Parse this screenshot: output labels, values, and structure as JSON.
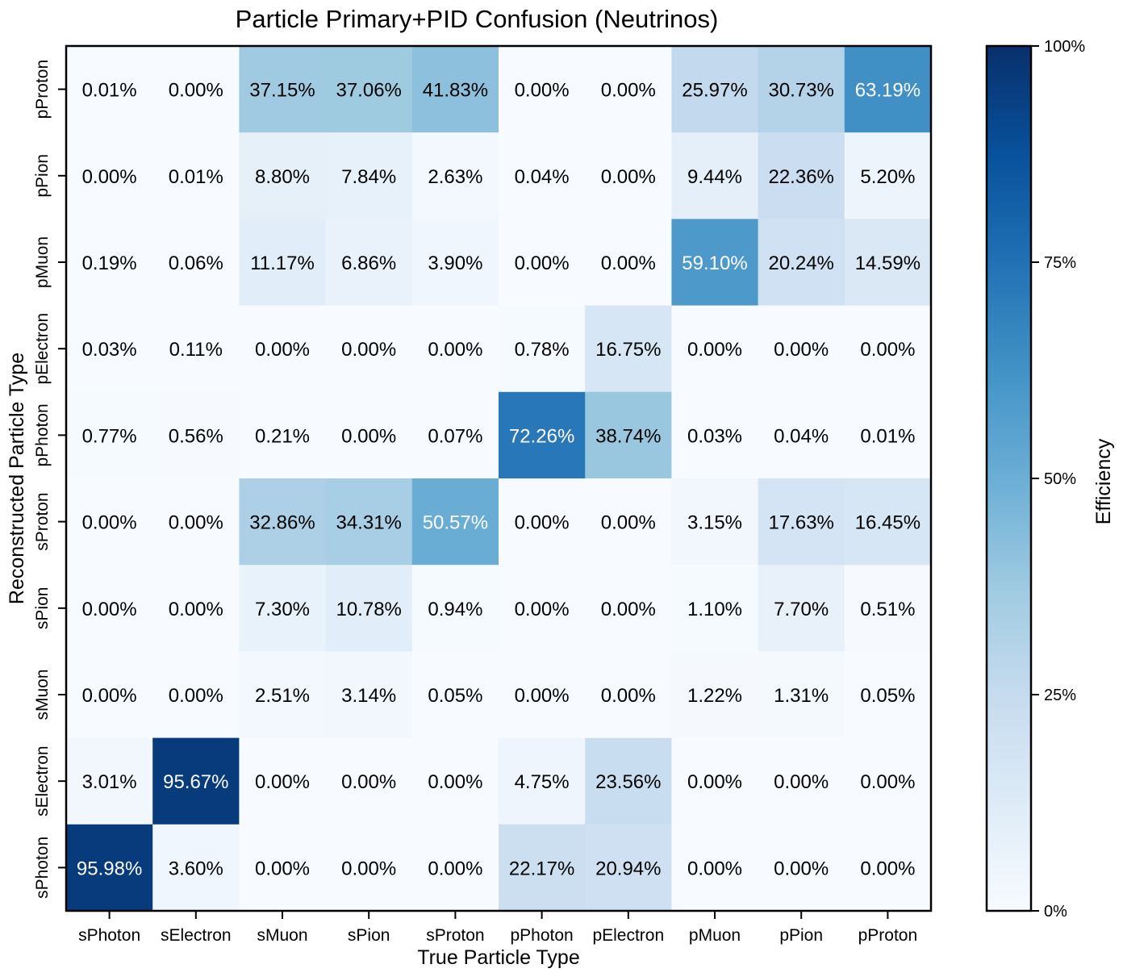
{
  "chart_data": {
    "type": "heatmap",
    "title": "Particle Primary+PID Confusion (Neutrinos)",
    "xlabel": "True Particle Type",
    "ylabel": "Reconstructed Particle Type",
    "x_categories": [
      "sPhoton",
      "sElectron",
      "sMuon",
      "sPion",
      "sProton",
      "pPhoton",
      "pElectron",
      "pMuon",
      "pPion",
      "pProton"
    ],
    "y_categories": [
      "pProton",
      "pPion",
      "pMuon",
      "pElectron",
      "pPhoton",
      "sProton",
      "sPion",
      "sMuon",
      "sElectron",
      "sPhoton"
    ],
    "values": [
      [
        0.01,
        0.0,
        37.15,
        37.06,
        41.83,
        0.0,
        0.0,
        25.97,
        30.73,
        63.19
      ],
      [
        0.0,
        0.01,
        8.8,
        7.84,
        2.63,
        0.04,
        0.0,
        9.44,
        22.36,
        5.2
      ],
      [
        0.19,
        0.06,
        11.17,
        6.86,
        3.9,
        0.0,
        0.0,
        59.1,
        20.24,
        14.59
      ],
      [
        0.03,
        0.11,
        0.0,
        0.0,
        0.0,
        0.78,
        16.75,
        0.0,
        0.0,
        0.0
      ],
      [
        0.77,
        0.56,
        0.21,
        0.0,
        0.07,
        72.26,
        38.74,
        0.03,
        0.04,
        0.01
      ],
      [
        0.0,
        0.0,
        32.86,
        34.31,
        50.57,
        0.0,
        0.0,
        3.15,
        17.63,
        16.45
      ],
      [
        0.0,
        0.0,
        7.3,
        10.78,
        0.94,
        0.0,
        0.0,
        1.1,
        7.7,
        0.51
      ],
      [
        0.0,
        0.0,
        2.51,
        3.14,
        0.05,
        0.0,
        0.0,
        1.22,
        1.31,
        0.05
      ],
      [
        3.01,
        95.67,
        0.0,
        0.0,
        0.0,
        4.75,
        23.56,
        0.0,
        0.0,
        0.0
      ],
      [
        95.98,
        3.6,
        0.0,
        0.0,
        0.0,
        22.17,
        20.94,
        0.0,
        0.0,
        0.0
      ]
    ],
    "value_format": "percent_2dp",
    "colorbar": {
      "label": "Efficiency",
      "range": [
        0,
        100
      ],
      "ticks": [
        0,
        25,
        50,
        75,
        100
      ],
      "tick_labels": [
        "0%",
        "25%",
        "50%",
        "75%",
        "100%"
      ],
      "colormap": "Blues",
      "colors": [
        "#f7fbff",
        "#deebf7",
        "#c6dbef",
        "#9ecae1",
        "#6baed6",
        "#4292c6",
        "#2171b5",
        "#08519c",
        "#08306b"
      ]
    },
    "grid": false
  }
}
